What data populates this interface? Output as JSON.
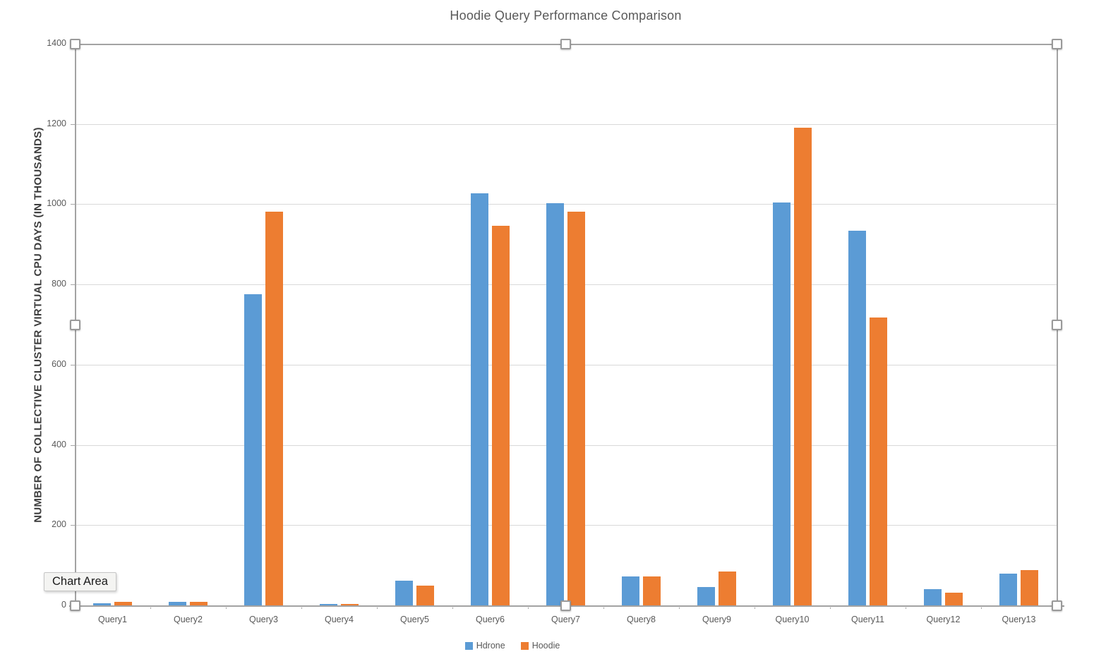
{
  "title": "Hoodie Query Performance Comparison",
  "tooltip": {
    "label": "Chart Area"
  },
  "axis": {
    "y_title": "NUMBER OF COLLECTIVE CLUSTER VIRTUAL CPU DAYS (IN THOUSANDS)"
  },
  "colors": {
    "hdrone": "#5B9BD5",
    "hoodie": "#ED7D31",
    "gridline": "#D9D9D9",
    "axis_text": "#595959",
    "title_text": "#595959"
  },
  "chart_data": {
    "type": "bar",
    "title": "Hoodie Query Performance Comparison",
    "categories": [
      "Query1",
      "Query2",
      "Query3",
      "Query4",
      "Query5",
      "Query6",
      "Query7",
      "Query8",
      "Query9",
      "Query10",
      "Query11",
      "Query12",
      "Query13"
    ],
    "series": [
      {
        "name": "Hdrone",
        "color": "#5B9BD5",
        "values": [
          5,
          9,
          775,
          4,
          62,
          1028,
          1003,
          72,
          46,
          1005,
          934,
          40,
          79
        ]
      },
      {
        "name": "Hoodie",
        "color": "#ED7D31",
        "values": [
          9,
          9,
          982,
          4,
          49,
          947,
          982,
          72,
          84,
          1190,
          718,
          32,
          88
        ]
      }
    ],
    "xlabel": "",
    "ylabel": "NUMBER OF COLLECTIVE CLUSTER VIRTUAL CPU DAYS (IN THOUSANDS)",
    "ylim": [
      0,
      1400
    ],
    "ytick_step": 200,
    "ytick_labels": [
      "0",
      "200",
      "400",
      "600",
      "800",
      "1000",
      "1200",
      "1400"
    ],
    "grid": true,
    "legend_position": "bottom",
    "selection": "chart-area-selected"
  }
}
